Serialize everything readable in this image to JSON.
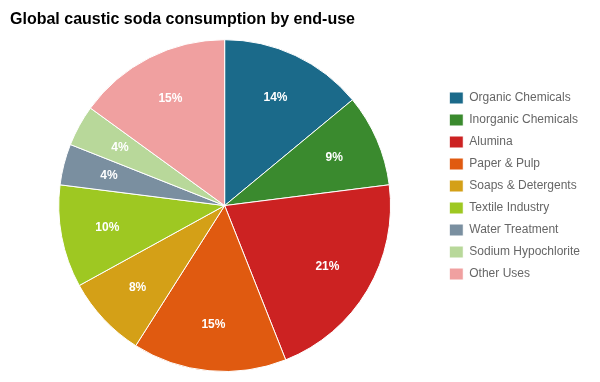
{
  "chart_data": {
    "type": "pie",
    "title": "Global caustic soda consumption by end-use",
    "categories": [
      "Organic Chemicals",
      "Inorganic Chemicals",
      "Alumina",
      "Paper & Pulp",
      "Soaps & Detergents",
      "Textile Industry",
      "Water Treatment",
      "Sodium Hypochlorite",
      "Other Uses"
    ],
    "values": [
      14,
      9,
      21,
      15,
      8,
      10,
      4,
      4,
      15
    ],
    "value_labels": [
      "14%",
      "9%",
      "21%",
      "15%",
      "8%",
      "10%",
      "4%",
      "4%",
      "15%"
    ],
    "colors": [
      "#1b6a8a",
      "#3a8a2e",
      "#cc2222",
      "#e05a10",
      "#d4a017",
      "#9ec822",
      "#7a8fa0",
      "#b8d89a",
      "#f0a0a0"
    ],
    "data_labels": true,
    "legend": "right"
  }
}
